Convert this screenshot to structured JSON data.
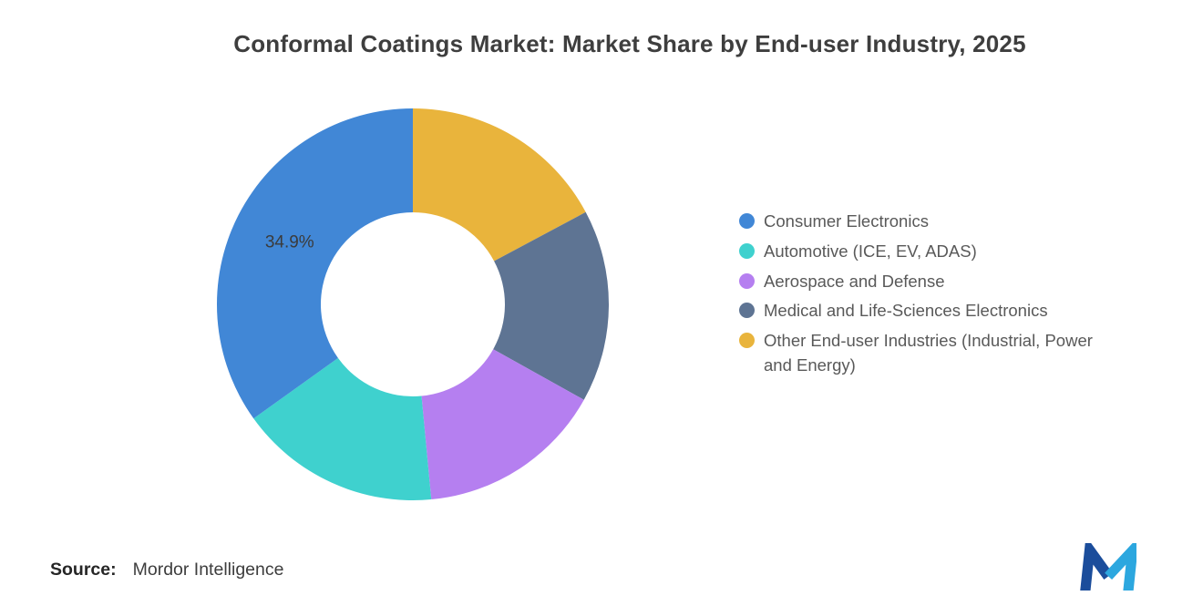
{
  "title": "Conformal Coatings Market: Market Share by End-user Industry, 2025",
  "source": {
    "label": "Source:",
    "value": "Mordor Intelligence"
  },
  "logo": {
    "name": "mordor-intelligence-logo",
    "dark_color": "#1B4D9B",
    "light_color": "#2CA7DF"
  },
  "chart_data": {
    "type": "pie",
    "subtype": "donut",
    "title": "Conformal Coatings Market: Market Share by End-user Industry, 2025",
    "start_angle": "top",
    "direction": "counterclockwise",
    "donut_hole_ratio": 0.47,
    "legend_position": "right",
    "segments": [
      {
        "label": "Consumer Electronics",
        "value": 34.9,
        "color": "#4187D6",
        "data_label": "34.9%"
      },
      {
        "label": "Automotive (ICE, EV, ADAS)",
        "value": 16.6,
        "color": "#3FD1CE",
        "data_label": ""
      },
      {
        "label": "Aerospace and Defense",
        "value": 15.4,
        "color": "#B57FF0",
        "data_label": ""
      },
      {
        "label": "Medical and Life-Sciences Electronics",
        "value": 15.9,
        "color": "#5E7493",
        "data_label": ""
      },
      {
        "label": "Other End-user Industries (Industrial, Power and Energy)",
        "value": 17.2,
        "color": "#E9B43C",
        "data_label": ""
      }
    ]
  }
}
